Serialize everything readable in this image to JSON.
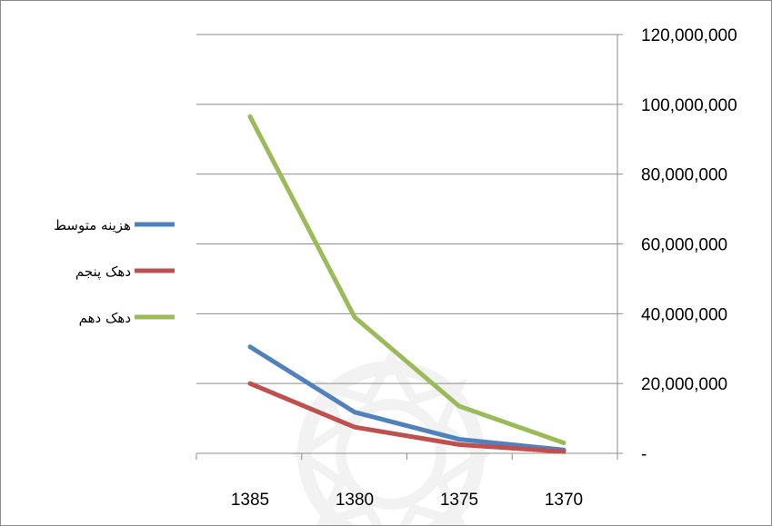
{
  "chart_data": {
    "type": "line",
    "title": "",
    "xlabel": "",
    "ylabel": "",
    "x": [
      "1385",
      "1380",
      "1375",
      "1370"
    ],
    "y_ticks": [
      "-",
      "20,000,000",
      "40,000,000",
      "60,000,000",
      "80,000,000",
      "100,000,000",
      "120,000,000"
    ],
    "ylim": [
      0,
      120000000
    ],
    "y_axis_side": "right",
    "grid": true,
    "legend_position": "left",
    "series": [
      {
        "name": "هزینه متوسط",
        "color": "#4f81bd",
        "values": [
          30500000,
          11800000,
          4000000,
          1000000
        ]
      },
      {
        "name": "دهک پنجم",
        "color": "#c0504d",
        "values": [
          20000000,
          7500000,
          2500000,
          500000
        ]
      },
      {
        "name": "دهک دهم",
        "color": "#9bbb59",
        "values": [
          96500000,
          39000000,
          13500000,
          3000000
        ]
      }
    ]
  }
}
